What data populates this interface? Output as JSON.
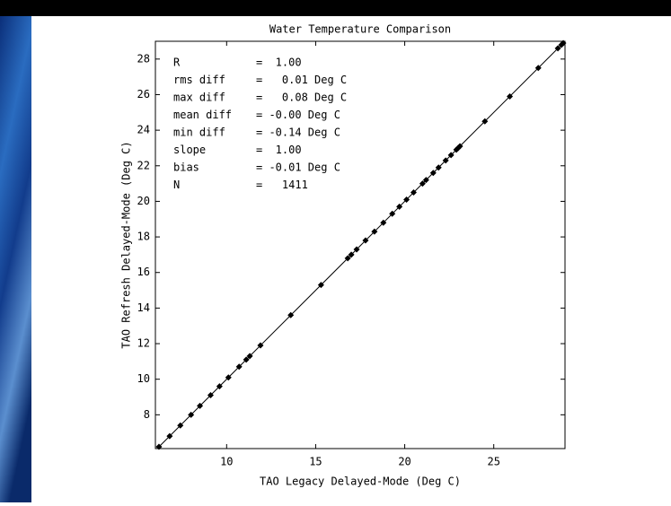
{
  "chart_data": {
    "type": "scatter",
    "title": "Water Temperature Comparison",
    "xlabel": "TAO Legacy Delayed-Mode (Deg C)",
    "ylabel": "TAO Refresh Delayed-Mode (Deg C)",
    "annotations": [
      [
        "R",
        "=  1.00"
      ],
      [
        "rms diff",
        "=   0.01 Deg C"
      ],
      [
        "max diff",
        "=   0.08 Deg C"
      ],
      [
        "mean diff",
        "= -0.00 Deg C"
      ],
      [
        "min diff",
        "= -0.14 Deg C"
      ],
      [
        "slope",
        "=  1.00"
      ],
      [
        "bias",
        "= -0.01 Deg C"
      ],
      [
        "N",
        "=   1411"
      ]
    ],
    "x": [
      6.2,
      6.8,
      7.4,
      8.0,
      8.5,
      9.1,
      9.6,
      10.1,
      10.7,
      11.1,
      11.3,
      11.9,
      13.6,
      15.3,
      16.8,
      17.0,
      17.3,
      17.8,
      18.3,
      18.8,
      19.3,
      19.7,
      20.1,
      20.5,
      21.0,
      21.2,
      21.6,
      21.9,
      22.3,
      22.6,
      22.9,
      23.0,
      23.1,
      24.5,
      25.9,
      27.5,
      28.6,
      28.8,
      28.9
    ],
    "values": [
      6.2,
      6.8,
      7.4,
      8.0,
      8.5,
      9.1,
      9.6,
      10.1,
      10.7,
      11.1,
      11.3,
      11.9,
      13.6,
      15.3,
      16.8,
      17.0,
      17.3,
      17.8,
      18.3,
      18.8,
      19.3,
      19.7,
      20.1,
      20.5,
      21.0,
      21.2,
      21.6,
      21.9,
      22.3,
      22.6,
      22.9,
      23.0,
      23.1,
      24.5,
      25.9,
      27.5,
      28.6,
      28.8,
      28.9
    ],
    "color": "#000000",
    "xlim": [
      6,
      29
    ],
    "ylim": [
      6.1,
      29
    ],
    "xticks": [
      10,
      15,
      20,
      25
    ],
    "yticks": [
      8,
      10,
      12,
      14,
      16,
      18,
      20,
      22,
      24,
      26,
      28
    ],
    "grid": false
  }
}
